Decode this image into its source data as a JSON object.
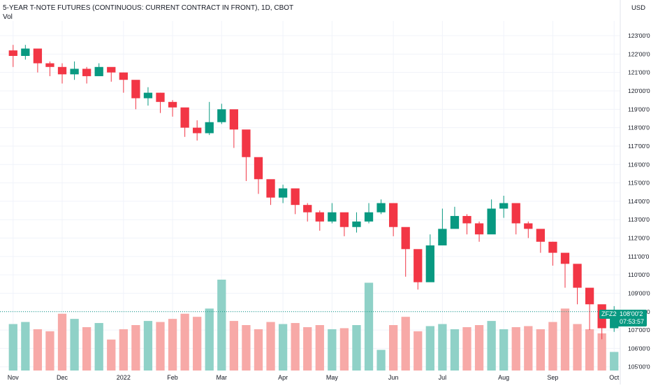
{
  "legend": {
    "title": "5-YEAR T-NOTE FUTURES (CONTINUOUS: CURRENT CONTRACT IN FRONT), 1D, CBOT",
    "volume_label": "Vol"
  },
  "price_axis": {
    "currency": "USD",
    "tick_labels": [
      "123'00'0",
      "122'00'0",
      "121'00'0",
      "120'00'0",
      "119'00'0",
      "118'00'0",
      "117'00'0",
      "116'00'0",
      "115'00'0",
      "114'00'0",
      "113'00'0",
      "112'00'0",
      "111'00'0",
      "110'00'0",
      "109'00'0",
      "108'00'0",
      "107'00'0",
      "106'00'0",
      "105'00'0"
    ]
  },
  "time_axis": {
    "tick_labels": [
      "Nov",
      "Dec",
      "2022",
      "Feb",
      "Mar",
      "Apr",
      "May",
      "Jun",
      "Jul",
      "Aug",
      "Sep",
      "Oct"
    ]
  },
  "last_price": {
    "symbol": "ZFZ2022",
    "price_label": "108'00'2",
    "countdown": "07:53:57"
  },
  "colors": {
    "up": "#089981",
    "down": "#f23645",
    "vol_up": "#8fd1c7",
    "vol_down": "#f7a9a7",
    "grid": "#f0f3fa",
    "axis_text": "#131722"
  },
  "chart_data": {
    "type": "candlestick",
    "title": "5-YEAR T-NOTE FUTURES (CONTINUOUS: CURRENT CONTRACT IN FRONT), 1D, CBOT",
    "y_unit": "USD",
    "ylim": [
      104.8,
      123.8
    ],
    "x": [
      "2021-10-29",
      "2021-11-05",
      "2021-11-12",
      "2021-11-19",
      "2021-11-26",
      "2021-12-03",
      "2021-12-10",
      "2021-12-17",
      "2021-12-24",
      "2021-12-31",
      "2022-01-07",
      "2022-01-14",
      "2022-01-21",
      "2022-01-28",
      "2022-02-04",
      "2022-02-11",
      "2022-02-18",
      "2022-02-25",
      "2022-03-04",
      "2022-03-11",
      "2022-03-18",
      "2022-03-25",
      "2022-04-01",
      "2022-04-08",
      "2022-04-15",
      "2022-04-22",
      "2022-04-29",
      "2022-05-06",
      "2022-05-13",
      "2022-05-20",
      "2022-05-27",
      "2022-06-03",
      "2022-06-10",
      "2022-06-17",
      "2022-06-24",
      "2022-07-01",
      "2022-07-08",
      "2022-07-15",
      "2022-07-22",
      "2022-07-29",
      "2022-08-05",
      "2022-08-12",
      "2022-08-19",
      "2022-08-26",
      "2022-09-02",
      "2022-09-09",
      "2022-09-16",
      "2022-09-23",
      "2022-09-30",
      "2022-10-03"
    ],
    "close": [
      121.9,
      122.3,
      121.5,
      121.3,
      120.9,
      121.2,
      120.8,
      121.3,
      121.0,
      120.6,
      119.6,
      119.9,
      119.4,
      119.1,
      118.0,
      117.7,
      118.3,
      119.0,
      117.9,
      116.4,
      115.2,
      114.2,
      114.7,
      113.8,
      113.4,
      112.9,
      113.4,
      112.6,
      112.9,
      113.4,
      113.9,
      112.6,
      111.4,
      109.6,
      111.6,
      112.5,
      113.2,
      112.8,
      112.2,
      113.6,
      113.9,
      112.8,
      112.5,
      111.8,
      111.2,
      110.6,
      109.3,
      108.4,
      107.1,
      108.0
    ],
    "high": [
      122.5,
      122.5,
      122.0,
      121.6,
      121.5,
      121.6,
      121.3,
      121.5,
      121.2,
      121.0,
      120.4,
      120.2,
      119.9,
      119.5,
      118.6,
      118.4,
      119.4,
      119.3,
      118.3,
      116.9,
      115.6,
      114.9,
      114.9,
      114.2,
      113.9,
      113.5,
      113.9,
      113.1,
      113.4,
      113.9,
      114.1,
      113.2,
      112.3,
      110.8,
      112.2,
      113.6,
      113.7,
      113.3,
      112.9,
      114.1,
      114.3,
      113.3,
      112.9,
      112.3,
      111.8,
      111.1,
      109.9,
      108.9,
      107.6,
      108.3
    ],
    "low": [
      121.3,
      121.7,
      121.0,
      120.8,
      120.4,
      120.6,
      120.4,
      120.9,
      120.5,
      119.9,
      119.0,
      119.2,
      118.8,
      118.6,
      117.5,
      117.3,
      117.6,
      118.2,
      116.9,
      115.1,
      114.4,
      113.8,
      113.9,
      113.3,
      112.9,
      112.4,
      112.8,
      112.1,
      112.3,
      112.8,
      113.3,
      112.1,
      109.9,
      109.2,
      109.8,
      112.1,
      112.6,
      112.2,
      111.8,
      112.6,
      113.1,
      112.2,
      112.0,
      111.2,
      110.5,
      109.3,
      108.4,
      107.0,
      106.5,
      106.9
    ],
    "volume": [
      45,
      47,
      40,
      38,
      55,
      50,
      42,
      46,
      30,
      40,
      44,
      48,
      47,
      50,
      55,
      52,
      60,
      88,
      48,
      44,
      40,
      47,
      45,
      46,
      42,
      44,
      40,
      41,
      44,
      85,
      20,
      44,
      52,
      38,
      43,
      45,
      40,
      42,
      44,
      48,
      40,
      42,
      43,
      40,
      47,
      60,
      45,
      40,
      36,
      18
    ]
  }
}
